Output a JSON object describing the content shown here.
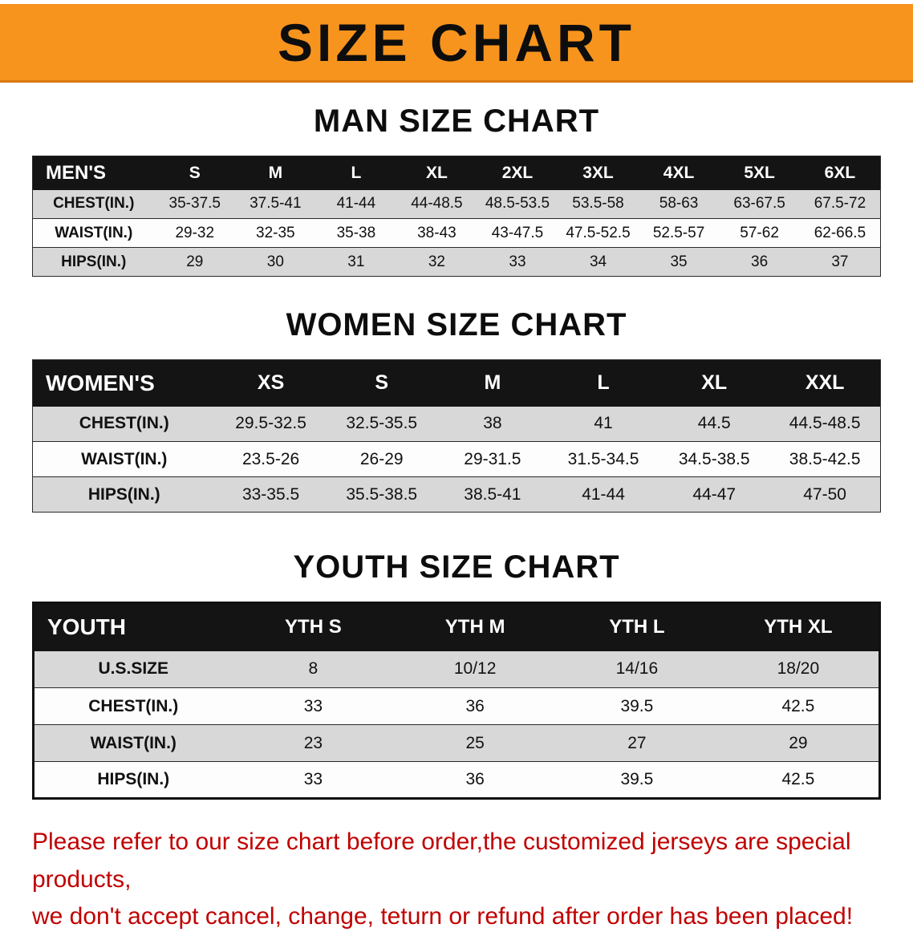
{
  "banner": {
    "title": "SIZE CHART",
    "background_color": "#F7941E",
    "text_color": "#0d0d0d"
  },
  "sections": [
    {
      "heading": "MAN SIZE CHART",
      "table": {
        "label": "MEN'S",
        "columns": [
          "S",
          "M",
          "L",
          "XL",
          "2XL",
          "3XL",
          "4XL",
          "5XL",
          "6XL"
        ],
        "rows": [
          {
            "label": "CHEST(IN.)",
            "values": [
              "35-37.5",
              "37.5-41",
              "41-44",
              "44-48.5",
              "48.5-53.5",
              "53.5-58",
              "58-63",
              "63-67.5",
              "67.5-72"
            ]
          },
          {
            "label": "WAIST(IN.)",
            "values": [
              "29-32",
              "32-35",
              "35-38",
              "38-43",
              "43-47.5",
              "47.5-52.5",
              "52.5-57",
              "57-62",
              "62-66.5"
            ]
          },
          {
            "label": "HIPS(IN.)",
            "values": [
              "29",
              "30",
              "31",
              "32",
              "33",
              "34",
              "35",
              "36",
              "37"
            ]
          }
        ]
      }
    },
    {
      "heading": "WOMEN SIZE CHART",
      "table": {
        "label": "WOMEN'S",
        "columns": [
          "XS",
          "S",
          "M",
          "L",
          "XL",
          "XXL"
        ],
        "rows": [
          {
            "label": "CHEST(IN.)",
            "values": [
              "29.5-32.5",
              "32.5-35.5",
              "38",
              "41",
              "44.5",
              "44.5-48.5"
            ]
          },
          {
            "label": "WAIST(IN.)",
            "values": [
              "23.5-26",
              "26-29",
              "29-31.5",
              "31.5-34.5",
              "34.5-38.5",
              "38.5-42.5"
            ]
          },
          {
            "label": "HIPS(IN.)",
            "values": [
              "33-35.5",
              "35.5-38.5",
              "38.5-41",
              "41-44",
              "44-47",
              "47-50"
            ]
          }
        ]
      }
    },
    {
      "heading": "YOUTH SIZE CHART",
      "table": {
        "label": "YOUTH",
        "columns": [
          "YTH S",
          "YTH M",
          "YTH L",
          "YTH XL"
        ],
        "rows": [
          {
            "label": "U.S.SIZE",
            "values": [
              "8",
              "10/12",
              "14/16",
              "18/20"
            ]
          },
          {
            "label": "CHEST(IN.)",
            "values": [
              "33",
              "36",
              "39.5",
              "42.5"
            ]
          },
          {
            "label": "WAIST(IN.)",
            "values": [
              "23",
              "25",
              "27",
              "29"
            ]
          },
          {
            "label": "HIPS(IN.)",
            "values": [
              "33",
              "36",
              "39.5",
              "42.5"
            ]
          }
        ]
      }
    }
  ],
  "disclaimer": {
    "line1": "Please refer to our size chart before order,the customized jerseys are special products,",
    "line2": "we don't accept cancel, change, teturn or refund after order has been placed!",
    "color": "#c00000"
  }
}
